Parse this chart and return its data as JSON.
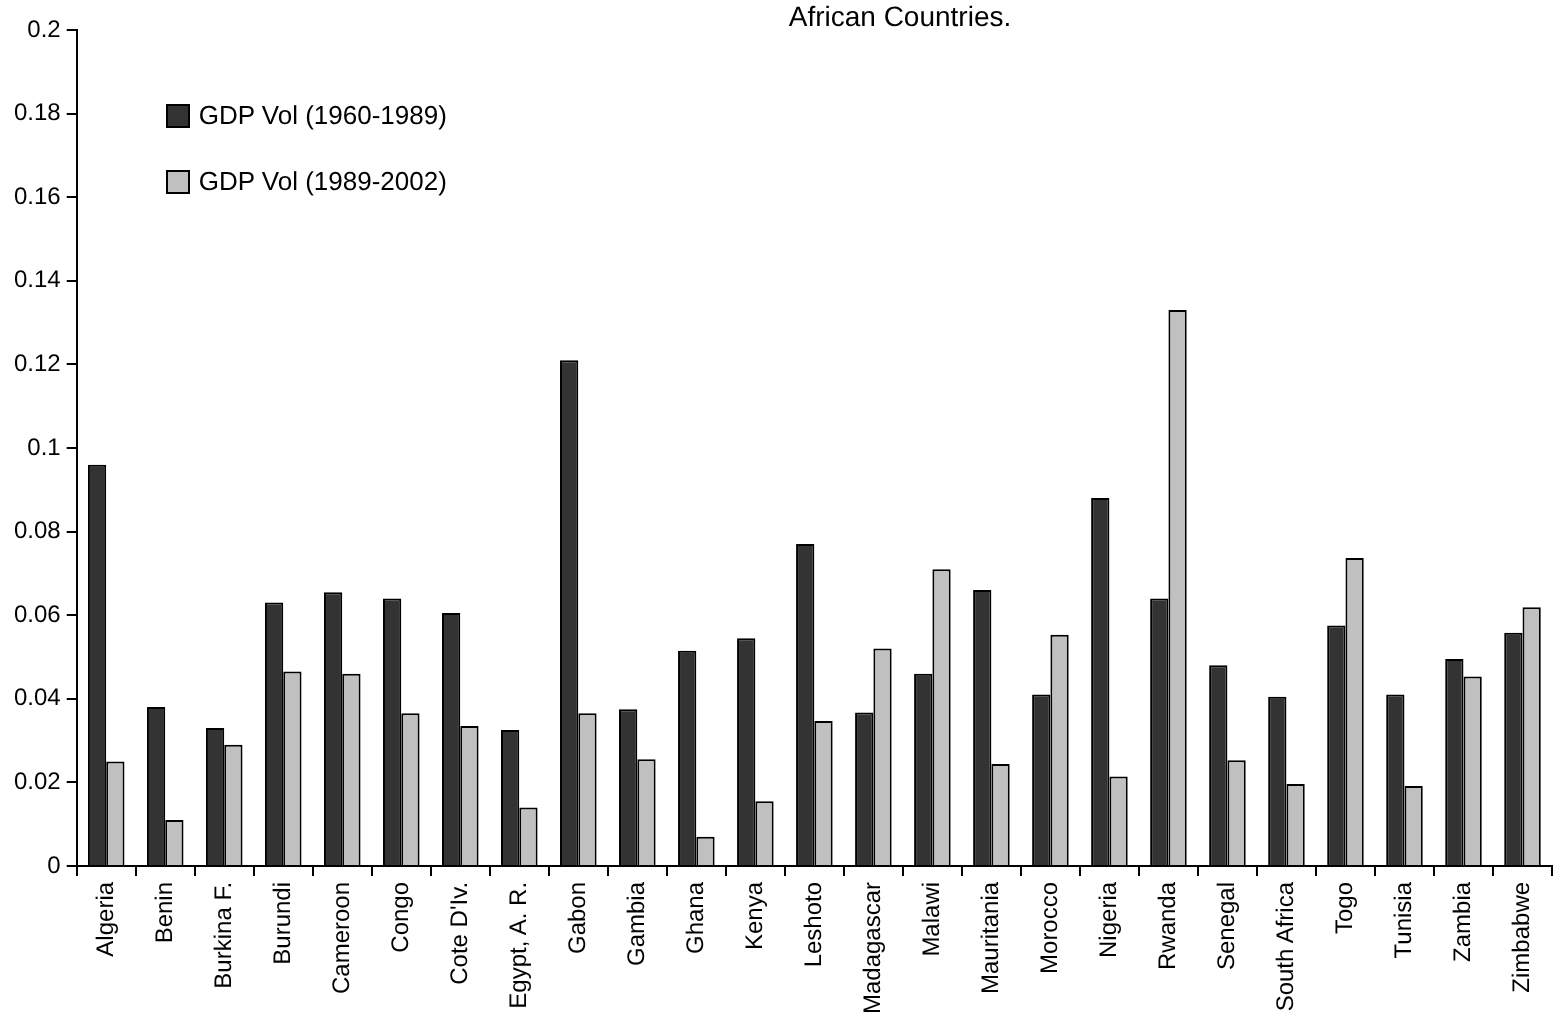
{
  "chart_data": {
    "type": "bar",
    "title": "African Countries.",
    "categories": [
      "Algeria",
      "Benin",
      "Burkina F.",
      "Burundi",
      "Cameroon",
      "Congo",
      "Cote D'Iv.",
      "Egypt, A. R.",
      "Gabon",
      "Gambia",
      "Ghana",
      "Kenya",
      "Leshoto",
      "Madagascar",
      "Malawi",
      "Mauritania",
      "Morocco",
      "Nigeria",
      "Rwanda",
      "Senegal",
      "South Africa",
      "Togo",
      "Tunisia",
      "Zambia",
      "Zimbabwe"
    ],
    "series": [
      {
        "name": "GDP Vol (1960-1989)",
        "color": "#333333",
        "values": [
          0.096,
          0.038,
          0.033,
          0.063,
          0.0655,
          0.064,
          0.0605,
          0.0325,
          0.121,
          0.0375,
          0.0515,
          0.0545,
          0.077,
          0.0367,
          0.046,
          0.066,
          0.041,
          0.088,
          0.064,
          0.048,
          0.0405,
          0.0575,
          0.041,
          0.0495,
          0.0558
        ]
      },
      {
        "name": "GDP Vol (1989-2002)",
        "color": "#c0c0c0",
        "values": [
          0.025,
          0.011,
          0.029,
          0.0465,
          0.046,
          0.0365,
          0.0335,
          0.014,
          0.0365,
          0.0255,
          0.007,
          0.0155,
          0.0347,
          0.052,
          0.071,
          0.0244,
          0.0553,
          0.0214,
          0.133,
          0.0253,
          0.0196,
          0.0737,
          0.0191,
          0.0453,
          0.0619
        ]
      }
    ],
    "ylim": [
      0,
      0.2
    ],
    "yticks": [
      0,
      0.02,
      0.04,
      0.06,
      0.08,
      0.1,
      0.12,
      0.14,
      0.16,
      0.18,
      0.2
    ],
    "grid": false,
    "legend": "top left"
  }
}
